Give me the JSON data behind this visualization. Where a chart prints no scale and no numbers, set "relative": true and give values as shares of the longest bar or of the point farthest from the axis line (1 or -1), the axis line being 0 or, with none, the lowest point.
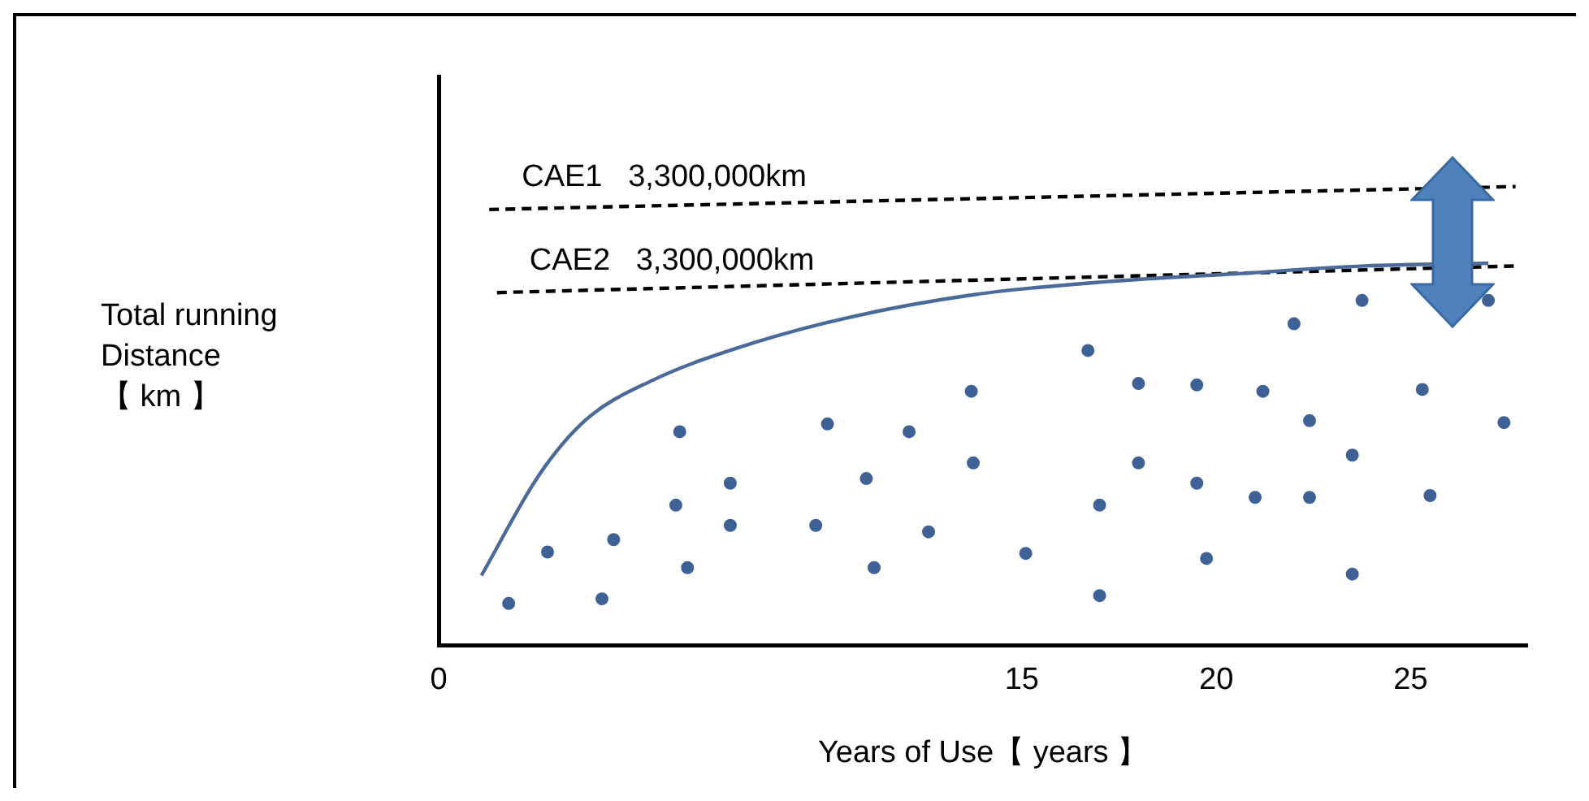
{
  "chart_data": {
    "type": "scatter",
    "relative": true,
    "xlabel": "Years of Use【 years 】",
    "ylabel": "Total running\nDistance\n【 km 】",
    "xlim": [
      0,
      28
    ],
    "xticks": [
      0,
      15,
      20,
      25
    ],
    "grid": false,
    "legend": false,
    "marker": "circle",
    "annotations": [
      "CAE1   3,300,000km",
      "CAE2   3,300,000km"
    ],
    "series": [
      {
        "color": "#3f6296",
        "x": [
          1.8,
          2.8,
          4.2,
          4.5,
          6.2,
          6.1,
          6.4,
          7.5,
          7.5,
          9.7,
          10.0,
          11.0,
          11.2,
          12.1,
          12.6,
          13.7,
          13.75,
          15.1,
          16.7,
          17.0,
          17.0,
          18.0,
          18.0,
          19.5,
          19.5,
          19.75,
          21.0,
          21.2,
          22.0,
          22.4,
          22.4,
          23.5,
          23.5,
          23.75,
          25.3,
          25.5,
          27.0,
          27.4
        ],
        "values": [
          0.092,
          0.204,
          0.102,
          0.231,
          0.466,
          0.306,
          0.17,
          0.354,
          0.262,
          0.262,
          0.483,
          0.364,
          0.17,
          0.466,
          0.248,
          0.554,
          0.398,
          0.201,
          0.643,
          0.306,
          0.109,
          0.571,
          0.398,
          0.568,
          0.354,
          0.19,
          0.323,
          0.554,
          0.701,
          0.49,
          0.323,
          0.415,
          0.156,
          0.752,
          0.558,
          0.327,
          0.752,
          0.486
        ]
      },
      {
        "type": "line",
        "color": "#4a6a9a",
        "marker": "none",
        "line_style": "solid",
        "x": [
          1.1,
          2.6,
          3.8,
          5.5,
          7.6,
          10.5,
          13.8,
          17.2,
          20.5,
          23.8,
          27.0
        ],
        "values": [
          0.153,
          0.374,
          0.493,
          0.578,
          0.646,
          0.714,
          0.765,
          0.793,
          0.81,
          0.827,
          0.833
        ]
      },
      {
        "type": "line",
        "color": "#000000",
        "marker": "none",
        "line_style": "dashed",
        "x": [
          1.3,
          27.7
        ],
        "values": [
          0.95,
          1.0
        ]
      },
      {
        "type": "line",
        "color": "#000000",
        "marker": "none",
        "line_style": "dashed",
        "x": [
          1.5,
          27.7
        ],
        "values": [
          0.769,
          0.827
        ]
      }
    ]
  }
}
